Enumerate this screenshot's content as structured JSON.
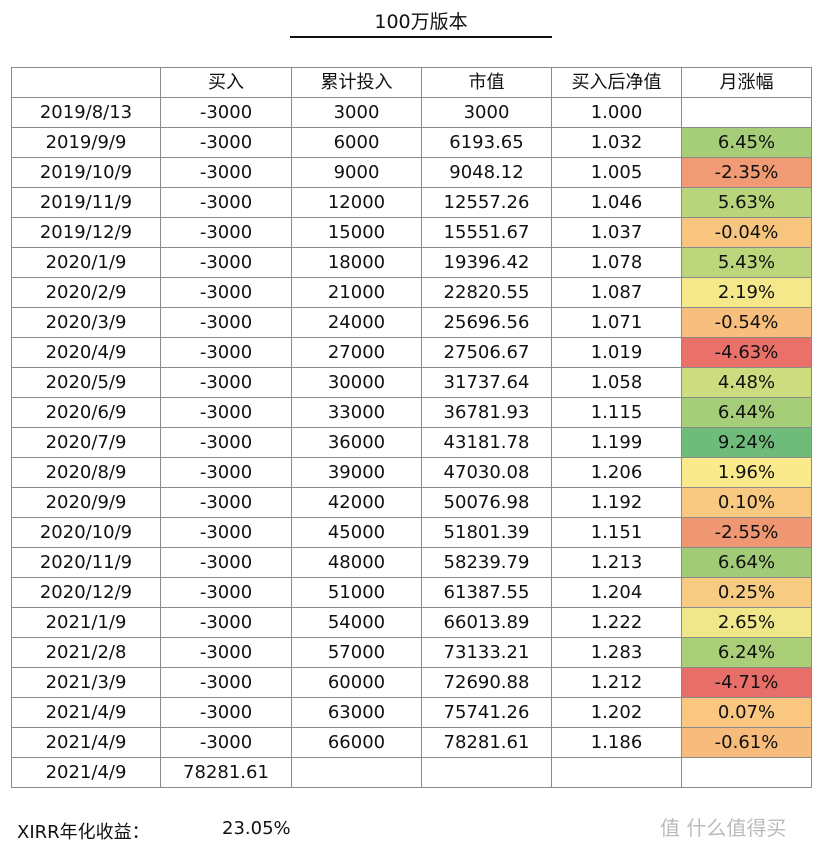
{
  "title": "100万版本",
  "table": {
    "header": [
      "买入",
      "累计投入",
      "市值",
      "买入后净值",
      "月涨幅"
    ],
    "rows": [
      [
        "2019/8/13",
        "-3000",
        "3000",
        "3000",
        "1.000"
      ],
      [
        "2019/9/9",
        "-3000",
        "6000",
        "6193.65",
        "1.032",
        "6.45%"
      ],
      [
        "2019/10/9",
        "-3000",
        "9000",
        "9048.12",
        "1.005",
        "-2.35%"
      ],
      [
        "2019/11/9",
        "-3000",
        "12000",
        "12557.26",
        "1.046",
        "5.63%"
      ],
      [
        "2019/12/9",
        "-3000",
        "15000",
        "15551.67",
        "1.037",
        "-0.04%"
      ],
      [
        "2020/1/9",
        "-3000",
        "18000",
        "19396.42",
        "1.078",
        "5.43%"
      ],
      [
        "2020/2/9",
        "-3000",
        "21000",
        "22820.55",
        "1.087",
        "2.19%"
      ],
      [
        "2020/3/9",
        "-3000",
        "24000",
        "25696.56",
        "1.071",
        "-0.54%"
      ],
      [
        "2020/4/9",
        "-3000",
        "27000",
        "27506.67",
        "1.019",
        "-4.63%"
      ],
      [
        "2020/5/9",
        "-3000",
        "30000",
        "31737.64",
        "1.058",
        "4.48%"
      ],
      [
        "2020/6/9",
        "-3000",
        "33000",
        "36781.93",
        "1.115",
        "6.44%"
      ],
      [
        "2020/7/9",
        "-3000",
        "36000",
        "43181.78",
        "1.199",
        "9.24%"
      ],
      [
        "2020/8/9",
        "-3000",
        "39000",
        "47030.08",
        "1.206",
        "1.96%"
      ],
      [
        "2020/9/9",
        "-3000",
        "42000",
        "50076.98",
        "1.192",
        "0.10%"
      ],
      [
        "2020/10/9",
        "-3000",
        "45000",
        "51801.39",
        "1.151",
        "-2.55%"
      ],
      [
        "2020/11/9",
        "-3000",
        "48000",
        "58239.79",
        "1.213",
        "6.64%"
      ],
      [
        "2020/12/9",
        "-3000",
        "51000",
        "61387.55",
        "1.204",
        "0.25%"
      ],
      [
        "2021/1/9",
        "-3000",
        "54000",
        "66013.89",
        "1.222",
        "2.65%"
      ],
      [
        "2021/2/8",
        "-3000",
        "57000",
        "73133.21",
        "1.283",
        "6.24%"
      ],
      [
        "2021/3/9",
        "-3000",
        "60000",
        "72690.88",
        "1.212",
        "-4.71%"
      ],
      [
        "2021/4/9",
        "-3000",
        "63000",
        "75741.26",
        "1.202",
        "0.07%"
      ],
      [
        "2021/4/9",
        "-3000",
        "66000",
        "78281.61",
        "1.186",
        "-0.61%"
      ],
      [
        "2021/4/9",
        "78281.61"
      ]
    ],
    "change_colors": [
      null,
      "#a6cd78",
      "#f09b73",
      "#b8d57b",
      "#f8c57f",
      "#bcd67b",
      "#f5e88a",
      "#f7be7d",
      "#e9716a",
      "#cddc7f",
      "#a6cd78",
      "#6fbc7a",
      "#faea8b",
      "#f9c881",
      "#ef9772",
      "#a2cb78",
      "#f8cb82",
      "#f0e68a",
      "#abcf79",
      "#e86e6a",
      "#f9c780",
      "#f7bb7c",
      null
    ]
  },
  "footer": {
    "label": "XIRR年化收益：",
    "value": "23.05%"
  },
  "watermark": "值 什么值得买"
}
